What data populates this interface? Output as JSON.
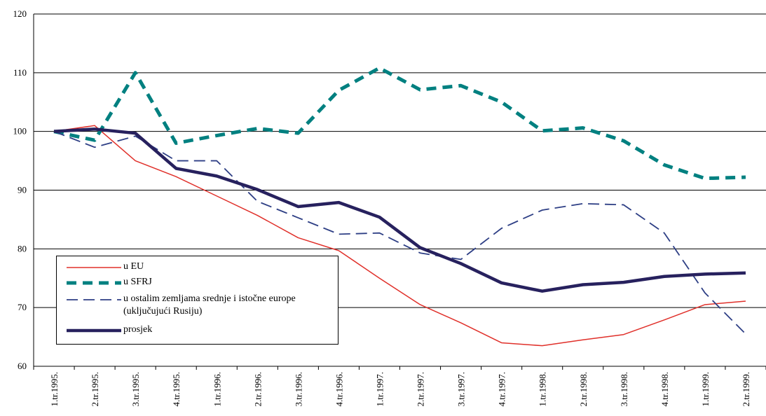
{
  "chart_data": {
    "type": "line",
    "categories": [
      "1.tr.1995.",
      "2.tr.1995.",
      "3.tr.1995.",
      "4.tr.1995.",
      "1.tr.1996.",
      "2.tr.1996.",
      "3.tr.1996.",
      "4.tr.1996.",
      "1.tr.1997.",
      "2.tr.1997.",
      "3.tr.1997.",
      "4.tr.1997.",
      "1.tr.1998.",
      "2.tr.1998.",
      "3.tr.1998.",
      "4.tr.1998.",
      "1.tr.1999.",
      "2.tr.1999."
    ],
    "series": [
      {
        "name": "u EU",
        "color": "#e0302a",
        "values": [
          100,
          101,
          95,
          92.3,
          89,
          85.7,
          81.9,
          79.7,
          75,
          70.5,
          67.4,
          64,
          63.5,
          64.5,
          65.4,
          67.9,
          70.5,
          71.1
        ]
      },
      {
        "name": "u SFRJ",
        "color": "#008080",
        "values": [
          100,
          98.5,
          110,
          98,
          99.3,
          100.5,
          99.7,
          107,
          110.8,
          107.1,
          107.8,
          105,
          100.1,
          100.6,
          98.4,
          94.3,
          92,
          92.2
        ]
      },
      {
        "name": "u ostalim zemljama srednje i istočne europe (uključujući Rusiju)",
        "color": "#2e3f85",
        "values": [
          100,
          97.3,
          99.2,
          95,
          95,
          88.1,
          85.3,
          82.5,
          82.7,
          79.3,
          78.2,
          83.5,
          86.6,
          87.7,
          87.5,
          82.7,
          72.5,
          65.5
        ]
      },
      {
        "name": "prosjek",
        "color": "#27215e",
        "values": [
          100,
          100.4,
          99.7,
          93.7,
          92.4,
          90.1,
          87.2,
          87.9,
          85.4,
          80.2,
          77.5,
          74.2,
          72.8,
          73.9,
          74.3,
          75.3,
          75.7,
          75.9
        ]
      }
    ],
    "ylim": [
      60,
      120
    ],
    "yticks": [
      60,
      70,
      80,
      90,
      100,
      110,
      120
    ],
    "grid": true
  }
}
